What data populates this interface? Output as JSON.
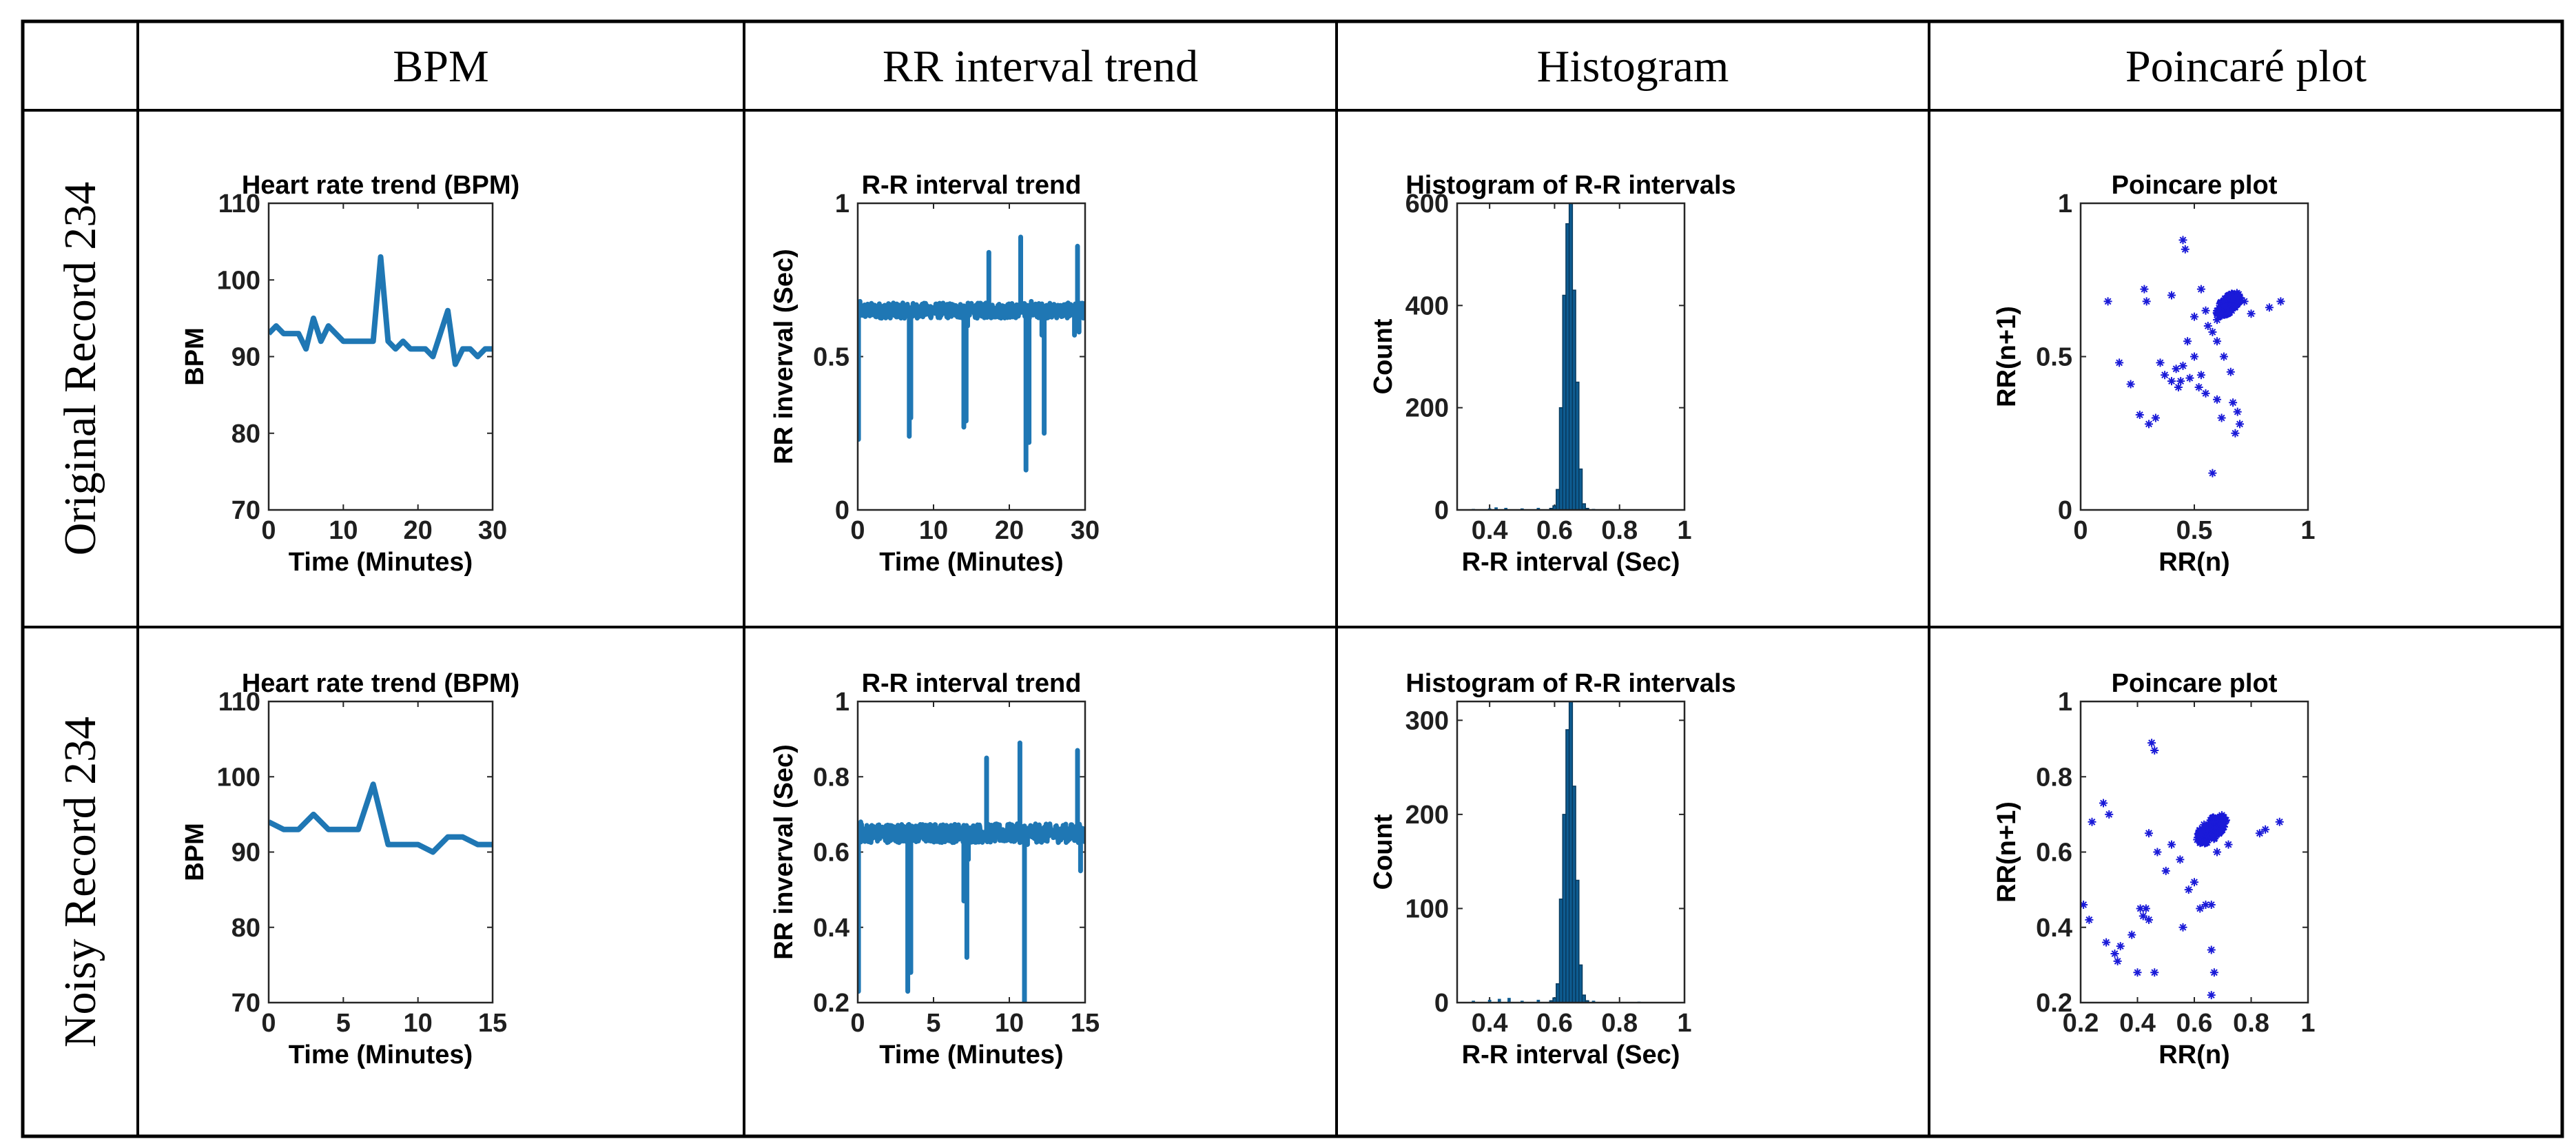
{
  "table": {
    "column_headers": [
      "BPM",
      "RR interval trend",
      "Histogram",
      "Poincaré plot"
    ],
    "row_headers": [
      "Original Record 234",
      "Noisy Record 234"
    ]
  },
  "colors": {
    "line": "#1f77b4",
    "hist_fill": "#0e5c91",
    "scatter": "#1a1ad8",
    "grid": "#000000"
  },
  "chart_data": [
    {
      "id": "r0c0",
      "type": "line",
      "title": "Heart rate trend (BPM)",
      "xlabel": "Time (Minutes)",
      "ylabel": "BPM",
      "xlim": [
        0,
        30
      ],
      "ylim": [
        70,
        110
      ],
      "xticks": [
        0,
        10,
        20,
        30
      ],
      "yticks": [
        70,
        80,
        90,
        100,
        110
      ],
      "x": [
        0,
        1,
        2,
        3,
        4,
        5,
        6,
        7,
        8,
        9,
        10,
        11,
        12,
        13,
        14,
        15,
        16,
        17,
        18,
        19,
        20,
        21,
        22,
        23,
        24,
        25,
        26,
        27,
        28,
        29,
        30
      ],
      "y": [
        93,
        94,
        93,
        93,
        93,
        91,
        95,
        92,
        94,
        93,
        92,
        92,
        92,
        92,
        92,
        103,
        92,
        91,
        92,
        91,
        91,
        91,
        90,
        93,
        96,
        89,
        91,
        91,
        90,
        91,
        91
      ]
    },
    {
      "id": "r0c1",
      "type": "line",
      "title": "R-R interval trend",
      "xlabel": "Time (Minutes)",
      "ylabel": "RR inverval (Sec)",
      "xlim": [
        0,
        30
      ],
      "ylim": [
        0,
        1
      ],
      "xticks": [
        0,
        10,
        20,
        30
      ],
      "yticks": [
        0,
        0.5,
        1
      ],
      "baseline": 0.65,
      "spikes": [
        [
          0.1,
          0.23
        ],
        [
          0.3,
          0.68
        ],
        [
          6.8,
          0.24
        ],
        [
          7.0,
          0.3
        ],
        [
          14.0,
          0.27
        ],
        [
          14.3,
          0.29
        ],
        [
          14.5,
          0.6
        ],
        [
          17.3,
          0.84
        ],
        [
          21.5,
          0.89
        ],
        [
          22.2,
          0.13
        ],
        [
          22.6,
          0.22
        ],
        [
          22.9,
          0.68
        ],
        [
          24.3,
          0.57
        ],
        [
          24.6,
          0.25
        ],
        [
          28.6,
          0.57
        ],
        [
          29.0,
          0.86
        ],
        [
          29.2,
          0.58
        ]
      ]
    },
    {
      "id": "r0c2",
      "type": "bar",
      "title": "Histogram of R-R intervals",
      "xlabel": "R-R interval (Sec)",
      "ylabel": "Count",
      "xlim": [
        0.3,
        1
      ],
      "ylim": [
        0,
        600
      ],
      "xticks": [
        0.4,
        0.6,
        0.8,
        1
      ],
      "yticks": [
        0,
        200,
        400,
        600
      ],
      "bin_centers": [
        0.59,
        0.6,
        0.61,
        0.62,
        0.63,
        0.64,
        0.65,
        0.66,
        0.67,
        0.68,
        0.69,
        0.7
      ],
      "counts": [
        3,
        8,
        40,
        200,
        420,
        560,
        600,
        430,
        250,
        80,
        12,
        3
      ],
      "small_bars": [
        [
          0.35,
          2
        ],
        [
          0.4,
          3
        ],
        [
          0.42,
          5
        ],
        [
          0.45,
          4
        ],
        [
          0.5,
          3
        ],
        [
          0.55,
          4
        ],
        [
          0.72,
          2
        ],
        [
          0.85,
          1
        ]
      ]
    },
    {
      "id": "r0c3",
      "type": "scatter",
      "title": "Poincare plot",
      "xlabel": "RR(n)",
      "ylabel": "RR(n+1)",
      "xlim": [
        0,
        1
      ],
      "ylim": [
        0,
        1
      ],
      "xticks": [
        0,
        0.5,
        1
      ],
      "yticks": [
        0,
        0.5,
        1
      ],
      "cluster": {
        "center": [
          0.65,
          0.67
        ],
        "count": 170
      },
      "points": [
        [
          0.12,
          0.68
        ],
        [
          0.17,
          0.48
        ],
        [
          0.22,
          0.41
        ],
        [
          0.26,
          0.31
        ],
        [
          0.28,
          0.72
        ],
        [
          0.29,
          0.68
        ],
        [
          0.3,
          0.28
        ],
        [
          0.33,
          0.3
        ],
        [
          0.35,
          0.48
        ],
        [
          0.37,
          0.44
        ],
        [
          0.4,
          0.42
        ],
        [
          0.4,
          0.7
        ],
        [
          0.42,
          0.46
        ],
        [
          0.43,
          0.4
        ],
        [
          0.44,
          0.42
        ],
        [
          0.45,
          0.47
        ],
        [
          0.45,
          0.88
        ],
        [
          0.46,
          0.85
        ],
        [
          0.47,
          0.55
        ],
        [
          0.48,
          0.43
        ],
        [
          0.5,
          0.63
        ],
        [
          0.5,
          0.5
        ],
        [
          0.52,
          0.4
        ],
        [
          0.53,
          0.44
        ],
        [
          0.53,
          0.72
        ],
        [
          0.55,
          0.38
        ],
        [
          0.56,
          0.6
        ],
        [
          0.58,
          0.12
        ],
        [
          0.6,
          0.36
        ],
        [
          0.6,
          0.62
        ],
        [
          0.62,
          0.3
        ],
        [
          0.63,
          0.5
        ],
        [
          0.66,
          0.45
        ],
        [
          0.67,
          0.35
        ],
        [
          0.68,
          0.25
        ],
        [
          0.69,
          0.32
        ],
        [
          0.7,
          0.28
        ],
        [
          0.72,
          0.68
        ],
        [
          0.75,
          0.64
        ],
        [
          0.83,
          0.66
        ],
        [
          0.88,
          0.68
        ],
        [
          0.55,
          0.65
        ],
        [
          0.58,
          0.58
        ],
        [
          0.6,
          0.55
        ]
      ]
    },
    {
      "id": "r1c0",
      "type": "line",
      "title": "Heart rate trend (BPM)",
      "xlabel": "Time (Minutes)",
      "ylabel": "BPM",
      "xlim": [
        0,
        15
      ],
      "ylim": [
        70,
        110
      ],
      "xticks": [
        0,
        5,
        10,
        15
      ],
      "yticks": [
        70,
        80,
        90,
        100,
        110
      ],
      "x": [
        0,
        1,
        2,
        3,
        4,
        5,
        6,
        7,
        8,
        9,
        10,
        11,
        12,
        13,
        14,
        15
      ],
      "y": [
        94,
        93,
        93,
        95,
        93,
        93,
        93,
        99,
        91,
        91,
        91,
        90,
        92,
        92,
        91,
        91
      ]
    },
    {
      "id": "r1c1",
      "type": "line",
      "title": "R-R interval trend",
      "xlabel": "Time (Minutes)",
      "ylabel": "RR inverval (Sec)",
      "xlim": [
        0,
        15
      ],
      "ylim": [
        0.2,
        1
      ],
      "xticks": [
        0,
        5,
        10,
        15
      ],
      "yticks": [
        0.2,
        0.4,
        0.6,
        0.8,
        1
      ],
      "baseline": 0.65,
      "spikes": [
        [
          0.05,
          0.23
        ],
        [
          0.2,
          0.68
        ],
        [
          3.3,
          0.23
        ],
        [
          3.5,
          0.28
        ],
        [
          7.0,
          0.47
        ],
        [
          7.2,
          0.32
        ],
        [
          7.3,
          0.58
        ],
        [
          8.5,
          0.85
        ],
        [
          10.7,
          0.89
        ],
        [
          11.0,
          0.18
        ],
        [
          11.2,
          0.62
        ],
        [
          14.5,
          0.87
        ],
        [
          14.7,
          0.55
        ]
      ]
    },
    {
      "id": "r1c2",
      "type": "bar",
      "title": "Histogram of R-R intervals",
      "xlabel": "R-R interval (Sec)",
      "ylabel": "Count",
      "xlim": [
        0.3,
        1
      ],
      "ylim": [
        0,
        320
      ],
      "xticks": [
        0.4,
        0.6,
        0.8,
        1
      ],
      "yticks": [
        0,
        100,
        200,
        300
      ],
      "bin_centers": [
        0.59,
        0.6,
        0.61,
        0.62,
        0.63,
        0.64,
        0.65,
        0.66,
        0.67,
        0.68,
        0.69,
        0.7
      ],
      "counts": [
        2,
        5,
        20,
        110,
        200,
        290,
        320,
        230,
        130,
        40,
        8,
        2
      ],
      "small_bars": [
        [
          0.35,
          2
        ],
        [
          0.4,
          3
        ],
        [
          0.43,
          4
        ],
        [
          0.46,
          5
        ],
        [
          0.5,
          2
        ],
        [
          0.55,
          3
        ],
        [
          0.72,
          2
        ],
        [
          0.86,
          1
        ]
      ]
    },
    {
      "id": "r1c3",
      "type": "scatter",
      "title": "Poincare plot",
      "xlabel": "RR(n)",
      "ylabel": "RR(n+1)",
      "xlim": [
        0.2,
        1
      ],
      "ylim": [
        0.2,
        1
      ],
      "xticks": [
        0.2,
        0.4,
        0.6,
        0.8,
        1
      ],
      "yticks": [
        0.2,
        0.4,
        0.6,
        0.8,
        1
      ],
      "cluster": {
        "center": [
          0.66,
          0.66
        ],
        "count": 160
      },
      "points": [
        [
          0.21,
          0.46
        ],
        [
          0.23,
          0.42
        ],
        [
          0.24,
          0.68
        ],
        [
          0.28,
          0.73
        ],
        [
          0.29,
          0.36
        ],
        [
          0.3,
          0.7
        ],
        [
          0.32,
          0.33
        ],
        [
          0.33,
          0.31
        ],
        [
          0.34,
          0.35
        ],
        [
          0.38,
          0.38
        ],
        [
          0.4,
          0.28
        ],
        [
          0.41,
          0.45
        ],
        [
          0.42,
          0.43
        ],
        [
          0.43,
          0.45
        ],
        [
          0.44,
          0.65
        ],
        [
          0.44,
          0.42
        ],
        [
          0.45,
          0.89
        ],
        [
          0.46,
          0.87
        ],
        [
          0.46,
          0.28
        ],
        [
          0.47,
          0.6
        ],
        [
          0.5,
          0.55
        ],
        [
          0.52,
          0.62
        ],
        [
          0.55,
          0.58
        ],
        [
          0.56,
          0.4
        ],
        [
          0.58,
          0.5
        ],
        [
          0.6,
          0.52
        ],
        [
          0.62,
          0.45
        ],
        [
          0.64,
          0.46
        ],
        [
          0.66,
          0.46
        ],
        [
          0.66,
          0.34
        ],
        [
          0.67,
          0.28
        ],
        [
          0.67,
          0.19
        ],
        [
          0.66,
          0.22
        ],
        [
          0.68,
          0.6
        ],
        [
          0.72,
          0.62
        ],
        [
          0.83,
          0.65
        ],
        [
          0.85,
          0.66
        ],
        [
          0.9,
          0.68
        ]
      ]
    }
  ]
}
